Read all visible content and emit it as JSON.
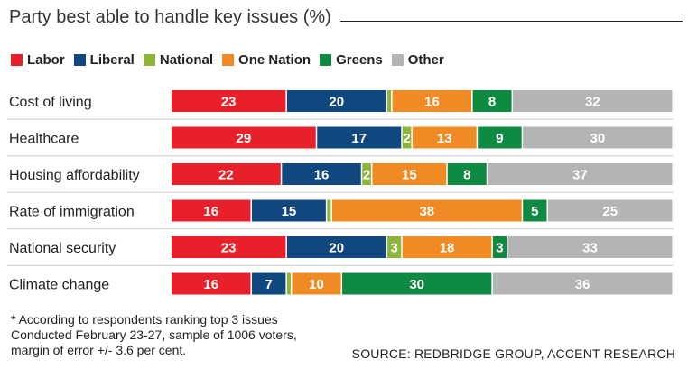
{
  "chart_data": {
    "type": "bar",
    "orientation": "horizontal",
    "stacked": true,
    "title": "Party best able to handle key issues (%)",
    "categories": [
      "Cost of living",
      "Healthcare",
      "Housing affordability",
      "Rate of immigration",
      "National security",
      "Climate change"
    ],
    "series": [
      {
        "name": "Labor",
        "color": "#e8202a",
        "values": [
          23,
          29,
          22,
          16,
          23,
          16
        ]
      },
      {
        "name": "Liberal",
        "color": "#11477f",
        "values": [
          20,
          17,
          16,
          15,
          20,
          7
        ]
      },
      {
        "name": "National",
        "color": "#8db53c",
        "values": [
          1,
          2,
          2,
          1,
          3,
          1
        ]
      },
      {
        "name": "One Nation",
        "color": "#f08a24",
        "values": [
          16,
          13,
          15,
          38,
          18,
          10
        ]
      },
      {
        "name": "Greens",
        "color": "#0f8a43",
        "values": [
          8,
          9,
          8,
          5,
          3,
          30
        ]
      },
      {
        "name": "Other",
        "color": "#b4b4b4",
        "values": [
          32,
          30,
          37,
          25,
          33,
          36
        ]
      }
    ],
    "data_labels": [
      [
        "23",
        "20",
        "",
        "16",
        "8",
        "32"
      ],
      [
        "29",
        "17",
        "2",
        "13",
        "9",
        "30"
      ],
      [
        "22",
        "16",
        "2",
        "15",
        "8",
        "37"
      ],
      [
        "16",
        "15",
        "",
        "38",
        "5",
        "25"
      ],
      [
        "23",
        "20",
        "3",
        "18",
        "3",
        "33"
      ],
      [
        "16",
        "7",
        "",
        "10",
        "30",
        "36"
      ]
    ],
    "legend_position": "top-left",
    "grid": false
  },
  "footnote": [
    "* According to respondents ranking top 3 issues",
    "Conducted February 23-27,  sample of 1006 voters,",
    "margin of error +/- 3.6 per cent."
  ],
  "source": "SOURCE: REDBRIDGE GROUP, ACCENT RESEARCH"
}
